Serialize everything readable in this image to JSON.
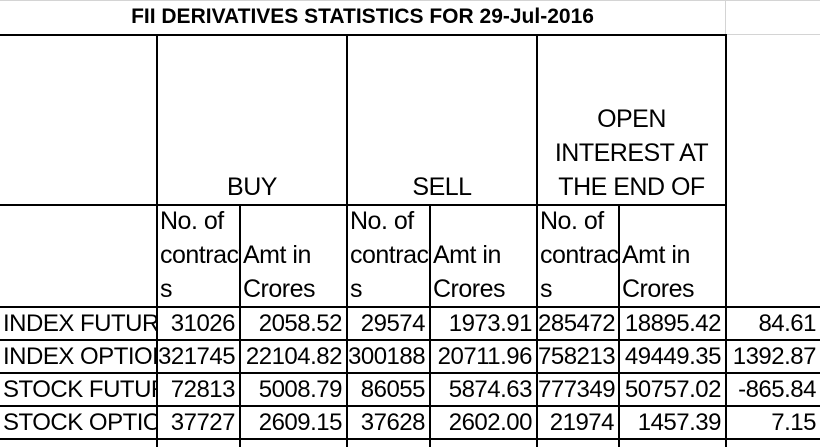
{
  "title": "FII DERIVATIVES STATISTICS FOR 29-Jul-2016",
  "groups": {
    "buy": "BUY",
    "sell": "SELL",
    "oi": "OPEN INTEREST AT THE END OF THE DAY"
  },
  "subheaders": {
    "contracts": "No. of contract s",
    "amount": "Amt in Crores"
  },
  "rows": [
    {
      "label": "INDEX FUTURES",
      "buy_contracts": "31026",
      "buy_amt": "2058.52",
      "sell_contracts": "29574",
      "sell_amt": "1973.91",
      "oi_contracts": "285472",
      "oi_amt": "18895.42",
      "net": "84.61"
    },
    {
      "label": "INDEX OPTIONS",
      "buy_contracts": "321745",
      "buy_amt": "22104.82",
      "sell_contracts": "300188",
      "sell_amt": "20711.96",
      "oi_contracts": "758213",
      "oi_amt": "49449.35",
      "net": "1392.87"
    },
    {
      "label": "STOCK FUTURES",
      "buy_contracts": "72813",
      "buy_amt": "5008.79",
      "sell_contracts": "86055",
      "sell_amt": "5874.63",
      "oi_contracts": "777349",
      "oi_amt": "50757.02",
      "net": "-865.84"
    },
    {
      "label": "STOCK OPTIONS",
      "buy_contracts": "37727",
      "buy_amt": "2609.15",
      "sell_contracts": "37628",
      "sell_amt": "2602.00",
      "oi_contracts": "21974",
      "oi_amt": "1457.39",
      "net": "7.15"
    }
  ]
}
